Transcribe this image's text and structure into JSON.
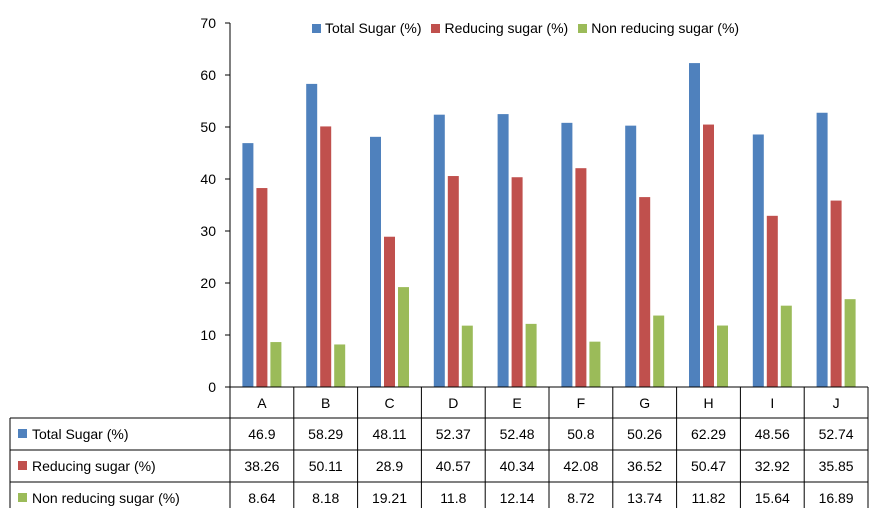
{
  "chart_data": {
    "type": "bar",
    "title": "",
    "xlabel": "",
    "ylabel": "",
    "ylim": [
      0,
      70
    ],
    "yticks": [
      0,
      10,
      20,
      30,
      40,
      50,
      60,
      70
    ],
    "grid": false,
    "legend_position": "top-right",
    "categories": [
      "A",
      "B",
      "C",
      "D",
      "E",
      "F",
      "G",
      "H",
      "I",
      "J"
    ],
    "series": [
      {
        "name": "Total Sugar (%)",
        "color": "#4f81bd",
        "values": [
          46.9,
          58.29,
          48.11,
          52.37,
          52.48,
          50.8,
          50.26,
          62.29,
          48.56,
          52.74
        ],
        "labels": [
          "46.9",
          "58.29",
          "48.11",
          "52.37",
          "52.48",
          "50.8",
          "50.26",
          "62.29",
          "48.56",
          "52.74"
        ]
      },
      {
        "name": "Reducing sugar (%)",
        "color": "#c0504d",
        "values": [
          38.26,
          50.11,
          28.9,
          40.57,
          40.34,
          42.08,
          36.52,
          50.47,
          32.92,
          35.85
        ],
        "labels": [
          "38.26",
          "50.11",
          "28.9",
          "40.57",
          "40.34",
          "42.08",
          "36.52",
          "50.47",
          "32.92",
          "35.85"
        ]
      },
      {
        "name": "Non reducing sugar (%)",
        "color": "#9bbb59",
        "values": [
          8.64,
          8.18,
          19.21,
          11.8,
          12.14,
          8.72,
          13.74,
          11.82,
          15.64,
          16.89
        ],
        "labels": [
          "8.64",
          "8.18",
          "19.21",
          "11.8",
          "12.14",
          "8.72",
          "13.74",
          "11.82",
          "15.64",
          "16.89"
        ]
      }
    ]
  }
}
